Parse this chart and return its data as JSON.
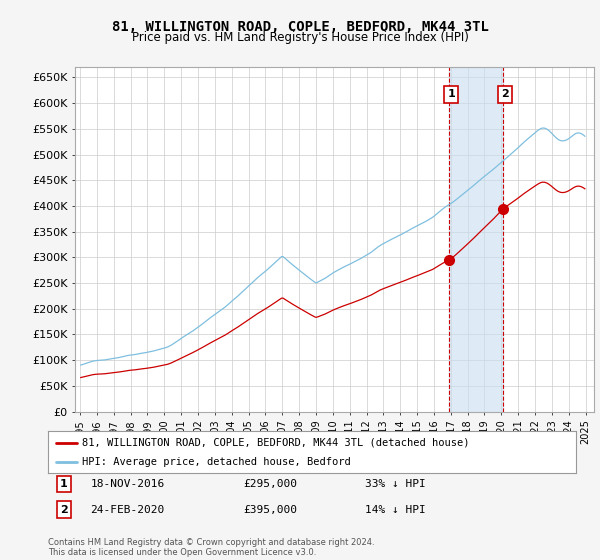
{
  "title": "81, WILLINGTON ROAD, COPLE, BEDFORD, MK44 3TL",
  "subtitle": "Price paid vs. HM Land Registry's House Price Index (HPI)",
  "ylabel_ticks": [
    "£0",
    "£50K",
    "£100K",
    "£150K",
    "£200K",
    "£250K",
    "£300K",
    "£350K",
    "£400K",
    "£450K",
    "£500K",
    "£550K",
    "£600K",
    "£650K"
  ],
  "ytick_values": [
    0,
    50000,
    100000,
    150000,
    200000,
    250000,
    300000,
    350000,
    400000,
    450000,
    500000,
    550000,
    600000,
    650000
  ],
  "hpi_color": "#7fbfdf",
  "hpi_fill_color": "#c8dff0",
  "price_color": "#cc0000",
  "marker_color": "#cc0000",
  "vline_color": "#cc0000",
  "purchase1_year": 2016.92,
  "purchase1_price": 295000,
  "purchase2_year": 2020.12,
  "purchase2_price": 395000,
  "legend_line1": "81, WILLINGTON ROAD, COPLE, BEDFORD, MK44 3TL (detached house)",
  "legend_line2": "HPI: Average price, detached house, Bedford",
  "footer": "Contains HM Land Registry data © Crown copyright and database right 2024.\nThis data is licensed under the Open Government Licence v3.0.",
  "background_color": "#f5f5f5",
  "plot_bg_color": "#ffffff",
  "xlim_left": 1994.7,
  "xlim_right": 2025.5,
  "ylim_top": 670000
}
